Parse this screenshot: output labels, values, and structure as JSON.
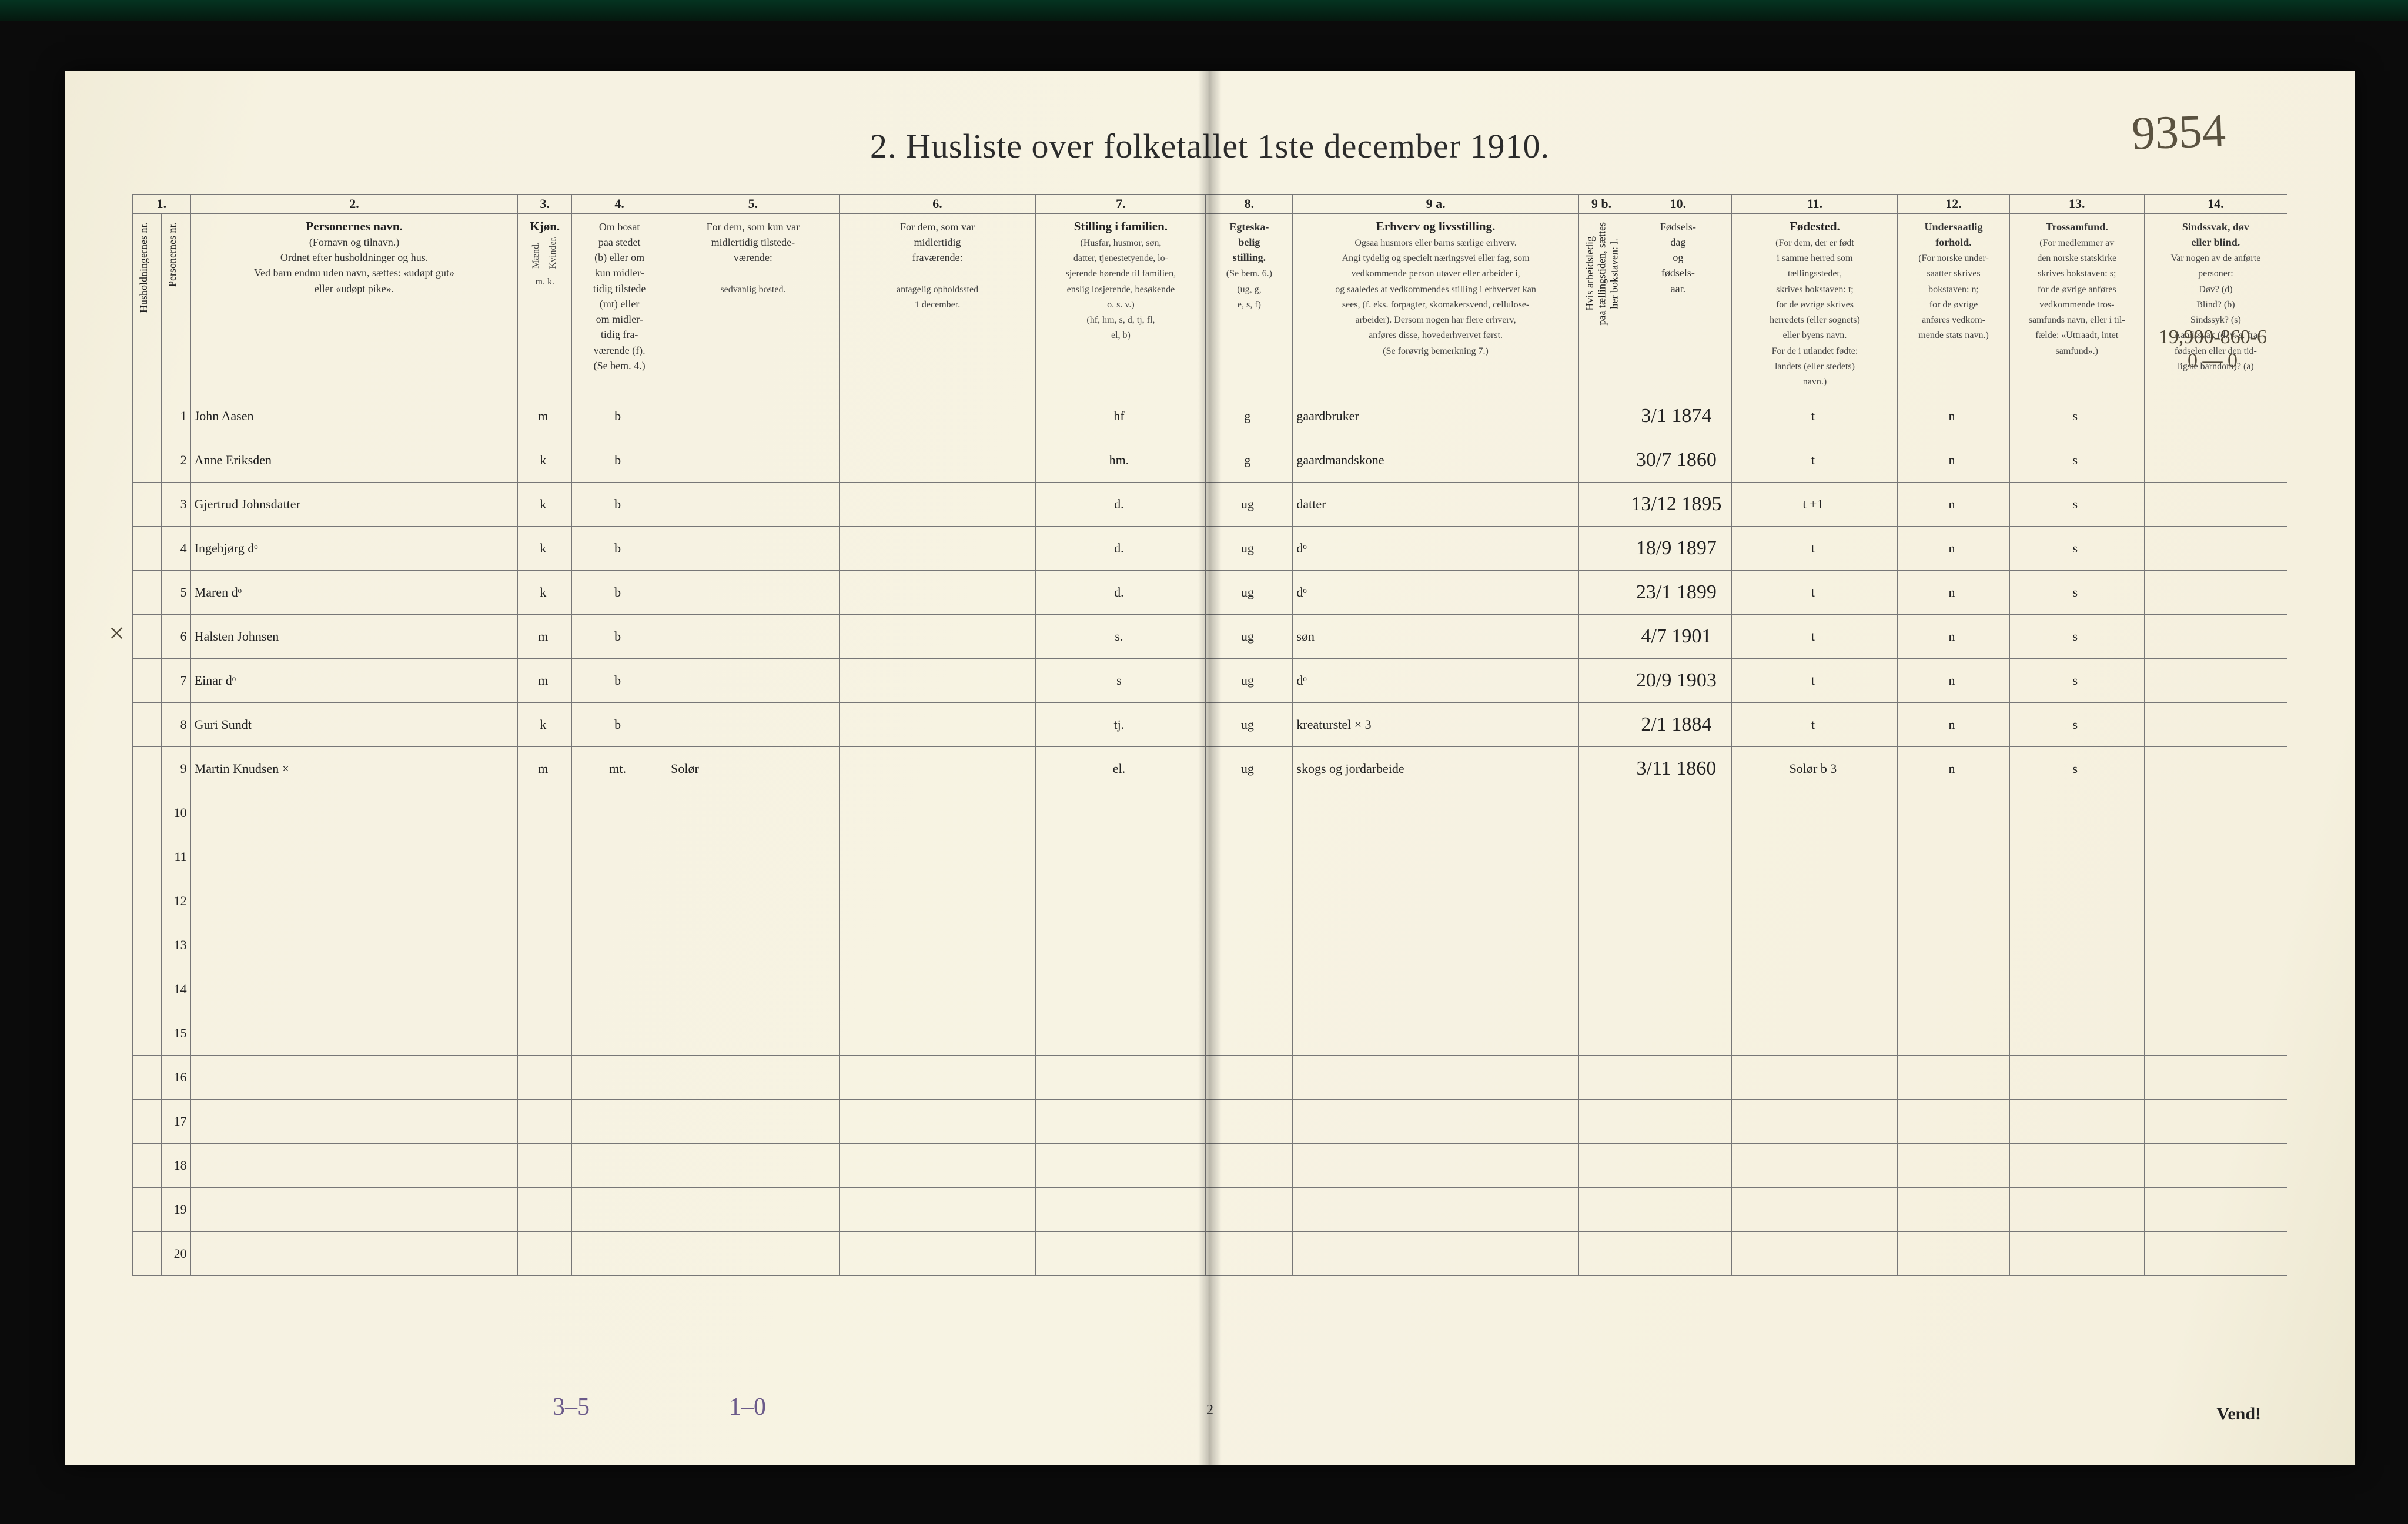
{
  "page": {
    "title": "2.  Husliste over folketallet 1ste december 1910.",
    "footer_page_number": "2",
    "vend_label": "Vend!",
    "handwritten_top_right": "9354",
    "handwritten_under_col14": "19,900-860-6",
    "handwritten_under_col14_b": "0 — 0",
    "bottom_note_left": "3–5",
    "bottom_note_left2": "1–0",
    "margin_x": "×"
  },
  "columns_numrow": [
    "1.",
    "2.",
    "3.",
    "4.",
    "5.",
    "6.",
    "7.",
    "8.",
    "9 a.",
    "9 b.",
    "10.",
    "11.",
    "12.",
    "13.",
    "14."
  ],
  "headers": {
    "c1": "Husholdningernes nr.",
    "c1b": "Personernes nr.",
    "c2": "Personernes navn.",
    "c2_sub": "(Fornavn og tilnavn.)\nOrdnet efter husholdninger og hus.\nVed barn endnu uden navn, sættes: «udøpt gut»\neller «udøpt pike».",
    "c3": "Kjøn.",
    "c3_sub_m": "Mænd.",
    "c3_sub_k": "Kvinder.",
    "c3_foot": "m.   k.",
    "c4": "Om bosat\npaa stedet\n(b) eller om\nkun midler-\ntidig tilstede\n(mt) eller\nom midler-\ntidig fra-\nværende (f).\n(Se bem. 4.)",
    "c5": "For dem, som kun var\nmidlertidig tilstede-\nværende:",
    "c5_sub": "sedvanlig bosted.",
    "c6": "For dem, som var\nmidlertidig\nfraværende:",
    "c6_sub": "antagelig opholdssted\n1 december.",
    "c7": "Stilling i familien.",
    "c7_sub": "(Husfar, husmor, søn,\ndatter, tjenestetyende, lo-\nsjerende hørende til familien,\nenslig losjerende, besøkende\no. s. v.)\n(hf, hm, s, d, tj, fl,\nel, b)",
    "c8": "Egteska-\nbelig\nstilling.",
    "c8_sub": "(Se bem. 6.)\n(ug, g,\ne, s, f)",
    "c9a": "Erhverv og livsstilling.",
    "c9a_sub": "Ogsaa husmors eller barns særlige erhverv.\nAngi tydelig og specielt næringsvei eller fag, som\nvedkommende person utøver eller arbeider i,\nog saaledes at vedkommendes stilling i erhvervet kan\nsees, (f. eks. forpagter, skomakersvend, cellulose-\narbeider). Dersom nogen har flere erhverv,\nanføres disse, hovederhvervet først.\n(Se forøvrig bemerkning 7.)",
    "c9b": "Hvis arbeidsledig\npaa tællingstiden, sættes\nher bokstaven: l.",
    "c10": "Fødsels-\ndag\nog\nfødsels-\naar.",
    "c11": "Fødested.",
    "c11_sub": "(For dem, der er født\ni samme herred som\ntællingsstedet,\nskrives bokstaven: t;\nfor de øvrige skrives\nherredets (eller sognets)\neller byens navn.\nFor de i utlandet fødte:\nlandets (eller stedets)\nnavn.)",
    "c12": "Undersaatlig\nforhold.",
    "c12_sub": "(For norske under-\nsaatter skrives\nbokstaven: n;\nfor de øvrige\nanføres vedkom-\nmende stats navn.)",
    "c13": "Trossamfund.",
    "c13_sub": "(For medlemmer av\nden norske statskirke\nskrives bokstaven: s;\nfor de øvrige anføres\nvedkommende tros-\nsamfunds navn, eller i til-\nfælde: «Uttraadt, intet\nsamfund».)",
    "c14": "Sindssvak, døv\neller blind.",
    "c14_sub": "Var nogen av de anførte\npersoner:\nDøv?          (d)\nBlind?        (b)\nSindssyk?  (s)\nAandssvak (d. v. s. fra\nfødselen eller den tid-\nligste barndom)?  (a)"
  },
  "rows": [
    {
      "n": "1",
      "name": "John Aasen",
      "mk": "m",
      "res": "b",
      "c5": "",
      "c6": "",
      "fam": "hf",
      "eg": "g",
      "erhv": "gaardbruker",
      "dob": "3/1 1874",
      "fsted": "t",
      "und": "n",
      "tro": "s",
      "c14": ""
    },
    {
      "n": "2",
      "name": "Anne Eriksden",
      "mk": "k",
      "res": "b",
      "c5": "",
      "c6": "",
      "fam": "hm.",
      "eg": "g",
      "erhv": "gaardmandskone",
      "dob": "30/7 1860",
      "fsted": "t",
      "und": "n",
      "tro": "s",
      "c14": ""
    },
    {
      "n": "3",
      "name": "Gjertrud Johnsdatter",
      "mk": "k",
      "res": "b",
      "c5": "",
      "c6": "",
      "fam": "d.",
      "eg": "ug",
      "erhv": "datter",
      "dob": "13/12 1895",
      "fsted": "t  +1",
      "und": "n",
      "tro": "s",
      "c14": ""
    },
    {
      "n": "4",
      "name": "Ingebjørg      dᵒ",
      "mk": "k",
      "res": "b",
      "c5": "",
      "c6": "",
      "fam": "d.",
      "eg": "ug",
      "erhv": "dᵒ",
      "dob": "18/9 1897",
      "fsted": "t",
      "und": "n",
      "tro": "s",
      "c14": ""
    },
    {
      "n": "5",
      "name": "Maren        dᵒ",
      "mk": "k",
      "res": "b",
      "c5": "",
      "c6": "",
      "fam": "d.",
      "eg": "ug",
      "erhv": "dᵒ",
      "dob": "23/1 1899",
      "fsted": "t",
      "und": "n",
      "tro": "s",
      "c14": ""
    },
    {
      "n": "6",
      "name": "Halsten Johnsen",
      "mk": "m",
      "res": "b",
      "c5": "",
      "c6": "",
      "fam": "s.",
      "eg": "ug",
      "erhv": "søn",
      "dob": "4/7 1901",
      "fsted": "t",
      "und": "n",
      "tro": "s",
      "c14": ""
    },
    {
      "n": "7",
      "name": "Einar        dᵒ",
      "mk": "m",
      "res": "b",
      "c5": "",
      "c6": "",
      "fam": "s",
      "eg": "ug",
      "erhv": "dᵒ",
      "dob": "20/9 1903",
      "fsted": "t",
      "und": "n",
      "tro": "s",
      "c14": ""
    },
    {
      "n": "8",
      "name": "Guri Sundt",
      "mk": "k",
      "res": "b",
      "c5": "",
      "c6": "",
      "fam": "tj.",
      "eg": "ug",
      "erhv": "kreaturstel   × 3",
      "dob": "2/1 1884",
      "fsted": "t",
      "und": "n",
      "tro": "s",
      "c14": ""
    },
    {
      "n": "9",
      "name": "Martin Knudsen  ×",
      "mk": "m",
      "res": "mt.",
      "c5": "Solør",
      "c6": "",
      "fam": "el.",
      "eg": "ug",
      "erhv": "skogs og jordarbeide",
      "dob": "3/11 1860",
      "fsted": "Solør b 3",
      "und": "n",
      "tro": "s",
      "c14": ""
    }
  ],
  "empty_row_numbers": [
    "10",
    "11",
    "12",
    "13",
    "14",
    "15",
    "16",
    "17",
    "18",
    "19",
    "20"
  ],
  "colwidths_pct": {
    "c1a": 1.4,
    "c1b": 1.4,
    "c2": 15.8,
    "c3": 2.6,
    "c4": 4.6,
    "c5": 8.3,
    "c6": 9.5,
    "c7": 8.2,
    "c8": 4.2,
    "c9a": 13.8,
    "c9b": 2.2,
    "c10": 5.2,
    "c11": 8.0,
    "c12": 5.4,
    "c13": 6.5,
    "c14": 6.9
  },
  "colors": {
    "paper": "#f5f0de",
    "ink": "#2b2b2b",
    "rule": "#777777",
    "hand": "#3b362a"
  }
}
